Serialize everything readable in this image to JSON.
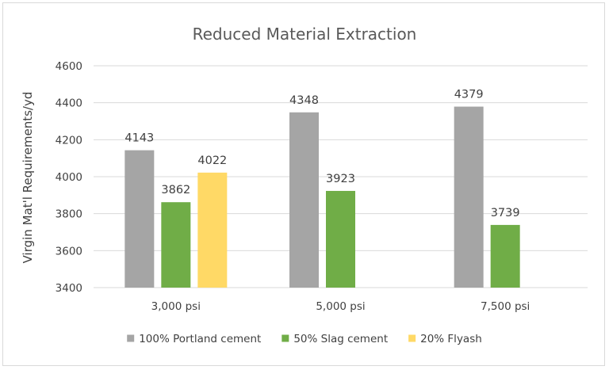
{
  "chart_data": {
    "type": "bar",
    "title": "Reduced Material Extraction",
    "xlabel": "",
    "ylabel": "Virgin Mat'l Requirements/yd",
    "ylim": [
      3400,
      4600
    ],
    "yticks": [
      3400,
      3600,
      3800,
      4000,
      4200,
      4400,
      4600
    ],
    "grid": true,
    "legend_position": "bottom",
    "categories": [
      "3,000 psi",
      "5,000 psi",
      "7,500 psi"
    ],
    "series": [
      {
        "name": "100% Portland cement",
        "color": "#a5a5a5",
        "values": [
          4143,
          4348,
          4379
        ]
      },
      {
        "name": "50% Slag cement",
        "color": "#70ad47",
        "values": [
          3862,
          3923,
          3739
        ]
      },
      {
        "name": "20% Flyash",
        "color": "#ffd966",
        "values": [
          4022,
          null,
          null
        ]
      }
    ]
  },
  "colors": {
    "gridline": "#d9d9d9",
    "axis": "#d9d9d9"
  }
}
